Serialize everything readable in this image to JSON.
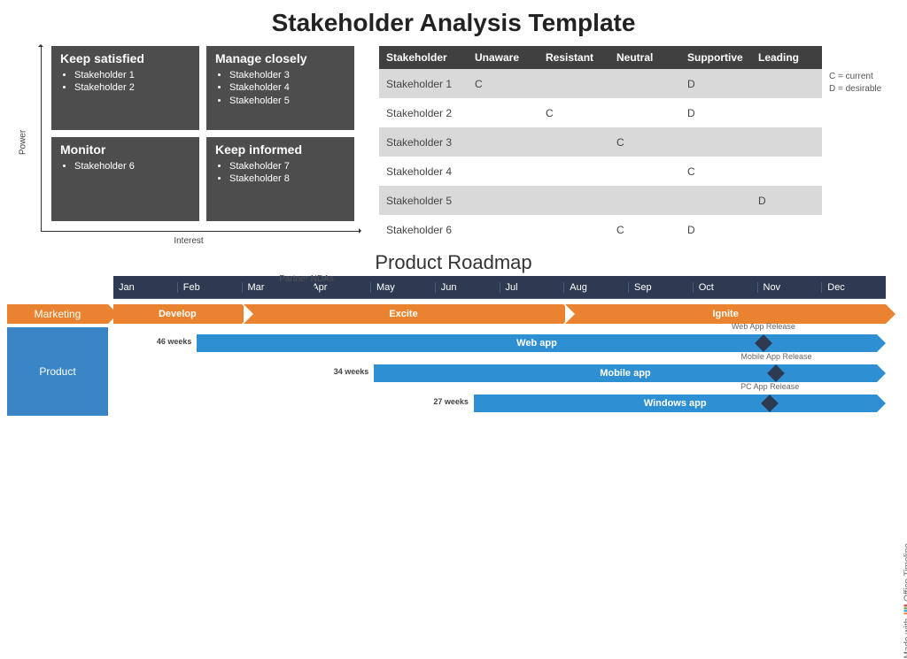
{
  "title": "Stakeholder Analysis Template",
  "matrix": {
    "y_axis": "Power",
    "x_axis": "Interest",
    "box_color": "#4d4d4d",
    "quads": [
      {
        "title": "Keep satisfied",
        "items": [
          "Stakeholder 1",
          "Stakeholder 2"
        ]
      },
      {
        "title": "Manage closely",
        "items": [
          "Stakeholder 3",
          "Stakeholder 4",
          "Stakeholder 5"
        ]
      },
      {
        "title": "Monitor",
        "items": [
          "Stakeholder 6"
        ]
      },
      {
        "title": "Keep informed",
        "items": [
          "Stakeholder 7",
          "Stakeholder 8"
        ]
      }
    ]
  },
  "table": {
    "header_bg": "#404040",
    "alt_bg": "#d9d9d9",
    "columns": [
      "Stakeholder",
      "Unaware",
      "Resistant",
      "Neutral",
      "Supportive",
      "Leading"
    ],
    "rows": [
      [
        "Stakeholder 1",
        "C",
        "",
        "",
        "D",
        ""
      ],
      [
        "Stakeholder 2",
        "",
        "C",
        "",
        "D",
        ""
      ],
      [
        "Stakeholder 3",
        "",
        "",
        "C",
        "",
        ""
      ],
      [
        "Stakeholder 4",
        "",
        "",
        "",
        "C",
        ""
      ],
      [
        "Stakeholder 5",
        "",
        "",
        "",
        "",
        "D"
      ],
      [
        "Stakeholder 6",
        "",
        "",
        "C",
        "D",
        ""
      ]
    ],
    "legend": [
      "C = current",
      "D = desirable"
    ]
  },
  "roadmap": {
    "title": "Product Roadmap",
    "months": [
      "Jan",
      "Feb",
      "Mar",
      "Apr",
      "May",
      "Jun",
      "Jul",
      "Aug",
      "Sep",
      "Oct",
      "Nov",
      "Dec"
    ],
    "months_bg": "#2d3a52",
    "top_milestone": {
      "label": "Partner NDAs",
      "month_index": 3,
      "color": "#2d3a52"
    },
    "marketing": {
      "label": "Marketing",
      "color": "#e9832f",
      "phases": [
        {
          "label": "Develop",
          "start": 0,
          "end": 2
        },
        {
          "label": "Excite",
          "start": 2,
          "end": 7
        },
        {
          "label": "Ignite",
          "start": 7,
          "end": 12
        }
      ]
    },
    "product": {
      "label": "Product",
      "label_bg": "#3a85c6",
      "bar_color": "#2f8fd3",
      "milestone_color": "#2d3a52",
      "bars": [
        {
          "label": "Web app",
          "weeks": "46 weeks",
          "start": 1.3,
          "end": 12,
          "milestone_label": "Web App Release",
          "milestone_at": 10.1
        },
        {
          "label": "Mobile app",
          "weeks": "34 weeks",
          "start": 4.05,
          "end": 12,
          "milestone_label": "Mobile App Release",
          "milestone_at": 10.3
        },
        {
          "label": "Windows app",
          "weeks": "27 weeks",
          "start": 5.6,
          "end": 12,
          "milestone_label": "PC App Release",
          "milestone_at": 10.2
        }
      ]
    },
    "credit": "Made with",
    "credit_brand": "Office Timeline",
    "credit_colors": [
      "#e9832f",
      "#2f8fd3",
      "#5aa13a",
      "#c43b3b"
    ]
  }
}
